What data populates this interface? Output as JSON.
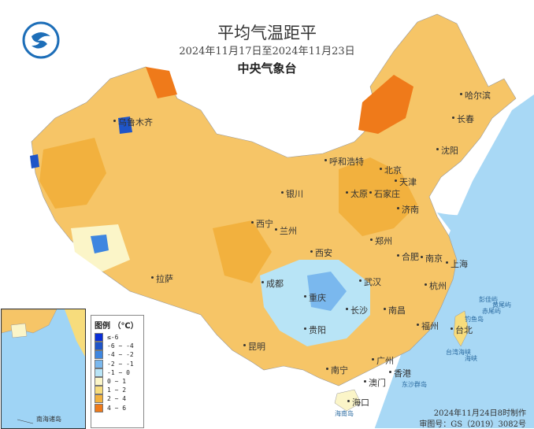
{
  "header": {
    "title": "平均气温距平",
    "date_range": "2024年11月17日至2024年11月23日",
    "agency": "中央气象台"
  },
  "legend": {
    "title": "图例 （℃）",
    "items": [
      {
        "label": "≤-6",
        "color": "#0a2fd8"
      },
      {
        "label": "-6 ~ -4",
        "color": "#1f55c8"
      },
      {
        "label": "-4 ~ -2",
        "color": "#3e86e0"
      },
      {
        "label": "-2 ~ -1",
        "color": "#7ab8ee"
      },
      {
        "label": "-1 ~ 0",
        "color": "#b8e4f6"
      },
      {
        "label": "0 ~ 1",
        "color": "#fbf5c8"
      },
      {
        "label": "1 ~ 2",
        "color": "#f7dc7c"
      },
      {
        "label": "2 ~ 4",
        "color": "#f2b13e"
      },
      {
        "label": "4 ~ 6",
        "color": "#ef7a1a"
      }
    ]
  },
  "cities": [
    {
      "name": "乌鲁木齐"
    },
    {
      "name": "哈尔滨"
    },
    {
      "name": "长春"
    },
    {
      "name": "沈阳"
    },
    {
      "name": "呼和浩特"
    },
    {
      "name": "北京"
    },
    {
      "name": "天津"
    },
    {
      "name": "银川"
    },
    {
      "name": "太原"
    },
    {
      "name": "石家庄"
    },
    {
      "name": "济南"
    },
    {
      "name": "西宁"
    },
    {
      "name": "兰州"
    },
    {
      "name": "郑州"
    },
    {
      "name": "西安"
    },
    {
      "name": "合肥"
    },
    {
      "name": "南京"
    },
    {
      "name": "上海"
    },
    {
      "name": "杭州"
    },
    {
      "name": "拉萨"
    },
    {
      "name": "成都"
    },
    {
      "name": "武汉"
    },
    {
      "name": "重庆"
    },
    {
      "name": "长沙"
    },
    {
      "name": "南昌"
    },
    {
      "name": "贵阳"
    },
    {
      "name": "福州"
    },
    {
      "name": "昆明"
    },
    {
      "name": "台北"
    },
    {
      "name": "南宁"
    },
    {
      "name": "广州"
    },
    {
      "name": "香港"
    },
    {
      "name": "澳门"
    },
    {
      "name": "海口"
    }
  ],
  "sea_labels": [
    {
      "name": "台湾海峡"
    },
    {
      "name": "东沙群岛"
    },
    {
      "name": "海南岛"
    },
    {
      "name": "赤尾屿"
    },
    {
      "name": "钓鱼岛"
    },
    {
      "name": "彭佳屿"
    },
    {
      "name": "黄尾屿"
    },
    {
      "name": "海峡"
    }
  ],
  "inset": {
    "label": "南海诸岛"
  },
  "footer": {
    "made": "2024年11月24日8时制作",
    "approval": "审图号：GS（2019）3082号"
  }
}
